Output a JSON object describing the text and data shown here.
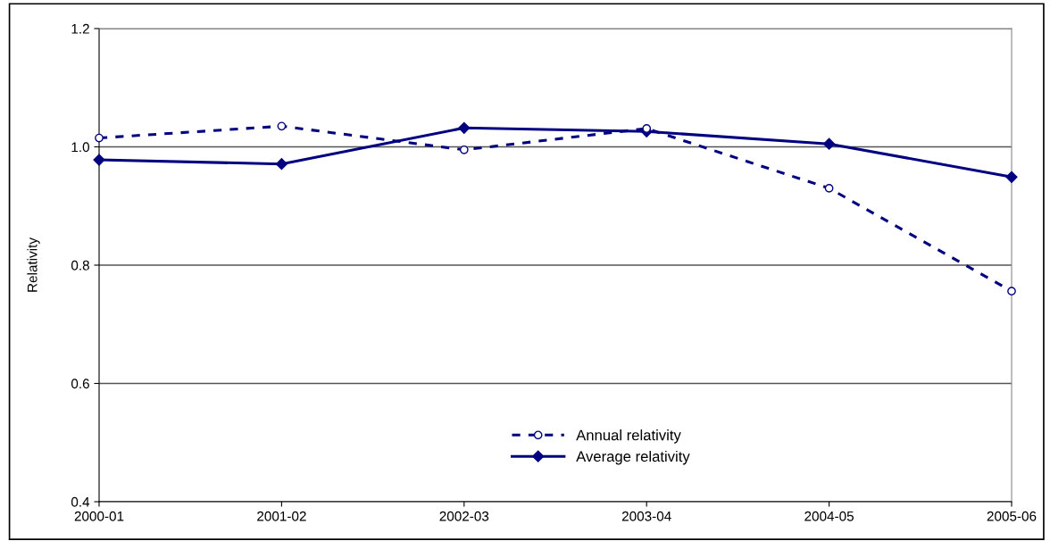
{
  "chart_data": {
    "type": "line",
    "ylabel": "Relativity",
    "categories": [
      "2000-01",
      "2001-02",
      "2002-03",
      "2003-04",
      "2004-05",
      "2005-06"
    ],
    "series": [
      {
        "name": "Annual relativity",
        "color": "#000080",
        "line_style": "dashed",
        "marker": "circle",
        "values": [
          1.015,
          1.035,
          0.995,
          1.031,
          0.93,
          0.756
        ]
      },
      {
        "name": "Average relativity",
        "color": "#000080",
        "line_style": "solid",
        "marker": "diamond",
        "values": [
          0.978,
          0.971,
          1.032,
          1.026,
          1.005,
          0.949
        ]
      }
    ],
    "ylim": [
      0.4,
      1.2
    ],
    "yticks": [
      {
        "value": 0.4,
        "label": "0.4"
      },
      {
        "value": 0.6,
        "label": "0.6"
      },
      {
        "value": 0.8,
        "label": "0.8"
      },
      {
        "value": 1.0,
        "label": "1.0"
      },
      {
        "value": 1.2,
        "label": "1.2"
      }
    ],
    "grid": "y",
    "legend": "bottom"
  }
}
